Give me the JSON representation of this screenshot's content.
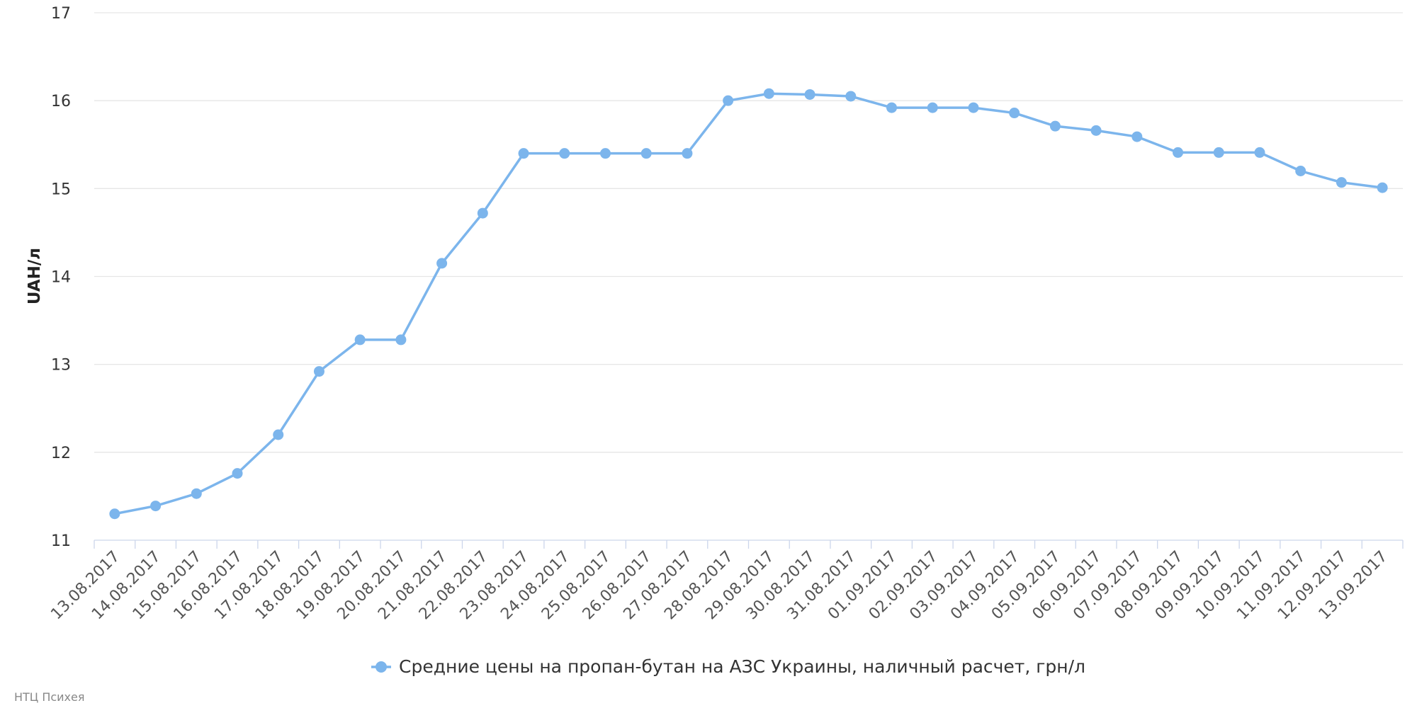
{
  "chart_data": {
    "type": "line",
    "title": "",
    "xlabel": "",
    "ylabel": "UAH/л",
    "ylim": [
      11,
      17
    ],
    "yticks": [
      11,
      12,
      13,
      14,
      15,
      16,
      17
    ],
    "grid": true,
    "legend_position": "bottom-center",
    "categories": [
      "13.08.2017",
      "14.08.2017",
      "15.08.2017",
      "16.08.2017",
      "17.08.2017",
      "18.08.2017",
      "19.08.2017",
      "20.08.2017",
      "21.08.2017",
      "22.08.2017",
      "23.08.2017",
      "24.08.2017",
      "25.08.2017",
      "26.08.2017",
      "27.08.2017",
      "28.08.2017",
      "29.08.2017",
      "30.08.2017",
      "31.08.2017",
      "01.09.2017",
      "02.09.2017",
      "03.09.2017",
      "04.09.2017",
      "05.09.2017",
      "06.09.2017",
      "07.09.2017",
      "08.09.2017",
      "09.09.2017",
      "10.09.2017",
      "11.09.2017",
      "12.09.2017",
      "13.09.2017"
    ],
    "series": [
      {
        "name": "Средние цены на пропан-бутан на АЗС Украины, наличный расчет, грн/л",
        "color": "#7cb5ec",
        "values": [
          11.3,
          11.39,
          11.53,
          11.76,
          12.2,
          12.92,
          13.28,
          13.28,
          14.15,
          14.72,
          15.4,
          15.4,
          15.4,
          15.4,
          15.4,
          16.0,
          16.08,
          16.07,
          16.05,
          15.92,
          15.92,
          15.92,
          15.86,
          15.71,
          15.66,
          15.59,
          15.41,
          15.41,
          15.41,
          15.2,
          15.07,
          15.01
        ]
      }
    ]
  },
  "credit": "НТЦ Психея"
}
